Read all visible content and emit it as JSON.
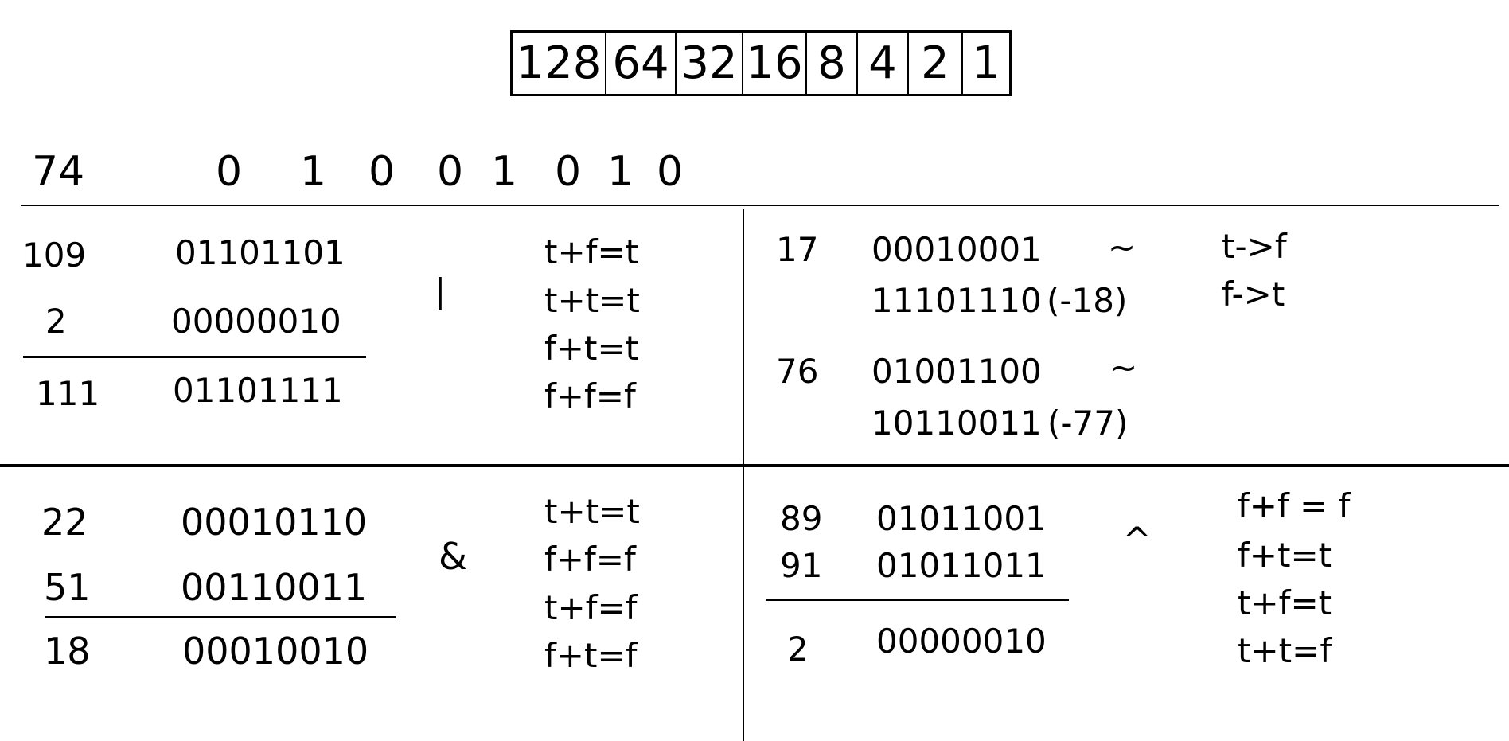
{
  "place_values": [
    "128",
    "64",
    "32",
    "16",
    "8",
    "4",
    "2",
    "1"
  ],
  "example": {
    "decimal": "74",
    "bits": [
      "0",
      "1",
      "0",
      "0",
      "1",
      "0",
      "1",
      "0"
    ]
  },
  "or_section": {
    "rows": [
      {
        "dec": "109",
        "bin": "01101101"
      },
      {
        "dec": "2",
        "bin": "00000010"
      }
    ],
    "result": {
      "dec": "111",
      "bin": "01101111"
    },
    "operator": "|",
    "truth": [
      "t+f=t",
      "t+t=t",
      "f+t=t",
      "f+f=f"
    ]
  },
  "not_section": {
    "examples": [
      {
        "dec": "17",
        "bin": "00010001",
        "op": "~",
        "result_bin": "11101110",
        "result_dec": "(-18)"
      },
      {
        "dec": "76",
        "bin": "01001100",
        "op": "~",
        "result_bin": "10110011",
        "result_dec": "(-77)"
      }
    ],
    "truth": [
      "t->f",
      "f->t"
    ]
  },
  "and_section": {
    "rows": [
      {
        "dec": "22",
        "bin": "00010110"
      },
      {
        "dec": "51",
        "bin": "00110011"
      }
    ],
    "result": {
      "dec": "18",
      "bin": "00010010"
    },
    "operator": "&",
    "truth": [
      "t+t=t",
      "f+f=f",
      "t+f=f",
      "f+t=f"
    ]
  },
  "xor_section": {
    "rows": [
      {
        "dec": "89",
        "bin": "01011001"
      },
      {
        "dec": "91",
        "bin": "01011011"
      }
    ],
    "result": {
      "dec": "2",
      "bin": "00000010"
    },
    "operator": "^",
    "truth": [
      "f+f = f",
      "f+t=t",
      "t+f=t",
      "t+t=f"
    ]
  }
}
